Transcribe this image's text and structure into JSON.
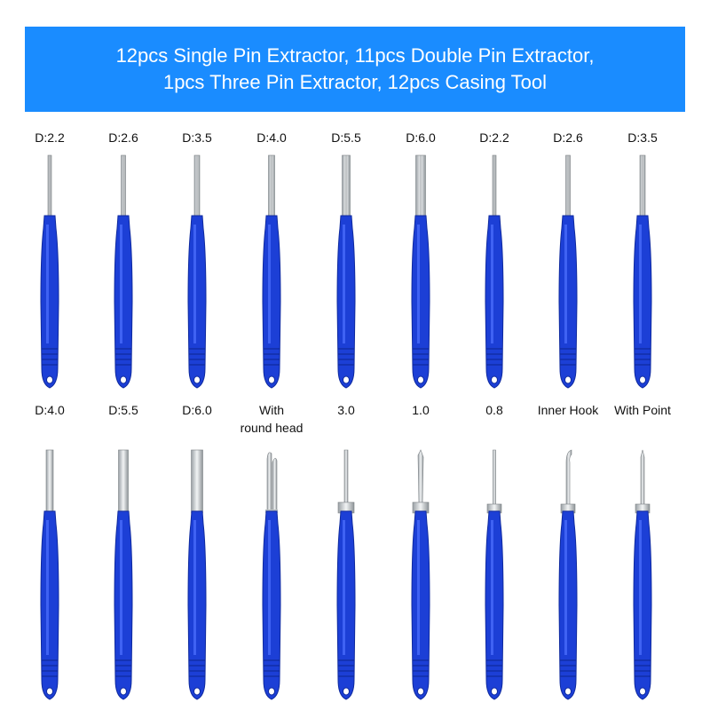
{
  "banner": {
    "line1": "12pcs Single Pin Extractor, 11pcs Double Pin Extractor,",
    "line2": "1pcs Three Pin Extractor, 12pcs Casing Tool"
  },
  "colors": {
    "banner": "#1a8cff",
    "handle": "#1c3fd6",
    "handle_dark": "#0f2a9e",
    "metal": "#cfd3d6"
  },
  "row1": [
    {
      "label": "D:2.2",
      "tip": "single-pin"
    },
    {
      "label": "D:2.6",
      "tip": "single-pin"
    },
    {
      "label": "D:3.5",
      "tip": "single-pin"
    },
    {
      "label": "D:4.0",
      "tip": "single-pin"
    },
    {
      "label": "D:5.5",
      "tip": "single-pin"
    },
    {
      "label": "D:6.0",
      "tip": "single-pin"
    },
    {
      "label": "D:2.2",
      "tip": "single-pin"
    },
    {
      "label": "D:2.6",
      "tip": "single-pin"
    },
    {
      "label": "D:3.5",
      "tip": "single-pin"
    }
  ],
  "row2": [
    {
      "label": "D:4.0",
      "label2": "",
      "tip": "casing"
    },
    {
      "label": "D:5.5",
      "label2": "",
      "tip": "casing"
    },
    {
      "label": "D:6.0",
      "label2": "",
      "tip": "casing"
    },
    {
      "label": "With",
      "label2": "round head",
      "tip": "double"
    },
    {
      "label": "3.0",
      "label2": "",
      "tip": "flat"
    },
    {
      "label": "1.0",
      "label2": "",
      "tip": "flat-thin"
    },
    {
      "label": "0.8",
      "label2": "",
      "tip": "needle"
    },
    {
      "label": "Inner Hook",
      "label2": "",
      "tip": "hook"
    },
    {
      "label": "With Point",
      "label2": "",
      "tip": "point"
    }
  ]
}
